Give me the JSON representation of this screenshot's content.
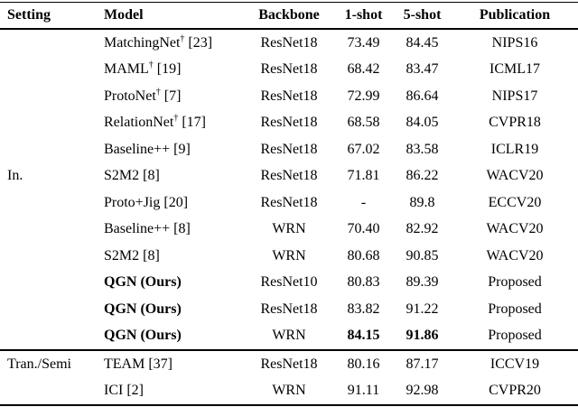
{
  "table": {
    "columns": [
      "Setting",
      "Model",
      "Backbone",
      "1-shot",
      "5-shot",
      "Publication"
    ],
    "separator_after_row_index": 11,
    "rows": [
      {
        "setting": "",
        "name": "MatchingNet",
        "sup": "†",
        "ref": "[23]",
        "backbone": "ResNet18",
        "one_shot": "73.49",
        "five_shot": "84.45",
        "pub": "NIPS16",
        "bold_model": false,
        "bold_scores": false
      },
      {
        "setting": "",
        "name": "MAML",
        "sup": "†",
        "ref": "[19]",
        "backbone": "ResNet18",
        "one_shot": "68.42",
        "five_shot": "83.47",
        "pub": "ICML17",
        "bold_model": false,
        "bold_scores": false
      },
      {
        "setting": "",
        "name": "ProtoNet",
        "sup": "†",
        "ref": "[7]",
        "backbone": "ResNet18",
        "one_shot": "72.99",
        "five_shot": "86.64",
        "pub": "NIPS17",
        "bold_model": false,
        "bold_scores": false
      },
      {
        "setting": "",
        "name": "RelationNet",
        "sup": "†",
        "ref": "[17]",
        "backbone": "ResNet18",
        "one_shot": "68.58",
        "five_shot": "84.05",
        "pub": "CVPR18",
        "bold_model": false,
        "bold_scores": false
      },
      {
        "setting": "",
        "name": "Baseline++",
        "sup": "",
        "ref": "[9]",
        "backbone": "ResNet18",
        "one_shot": "67.02",
        "five_shot": "83.58",
        "pub": "ICLR19",
        "bold_model": false,
        "bold_scores": false
      },
      {
        "setting": "In.",
        "name": "S2M2",
        "sup": "",
        "ref": "[8]",
        "backbone": "ResNet18",
        "one_shot": "71.81",
        "five_shot": "86.22",
        "pub": "WACV20",
        "bold_model": false,
        "bold_scores": false
      },
      {
        "setting": "",
        "name": "Proto+Jig",
        "sup": "",
        "ref": "[20]",
        "backbone": "ResNet18",
        "one_shot": "-",
        "five_shot": "89.8",
        "pub": "ECCV20",
        "bold_model": false,
        "bold_scores": false
      },
      {
        "setting": "",
        "name": "Baseline++",
        "sup": "",
        "ref": "[8]",
        "backbone": "WRN",
        "one_shot": "70.40",
        "five_shot": "82.92",
        "pub": "WACV20",
        "bold_model": false,
        "bold_scores": false
      },
      {
        "setting": "",
        "name": "S2M2",
        "sup": "",
        "ref": "[8]",
        "backbone": "WRN",
        "one_shot": "80.68",
        "five_shot": "90.85",
        "pub": "WACV20",
        "bold_model": false,
        "bold_scores": false
      },
      {
        "setting": "",
        "name": "QGN (Ours)",
        "sup": "",
        "ref": "",
        "backbone": "ResNet10",
        "one_shot": "80.83",
        "five_shot": "89.39",
        "pub": "Proposed",
        "bold_model": true,
        "bold_scores": false
      },
      {
        "setting": "",
        "name": "QGN (Ours)",
        "sup": "",
        "ref": "",
        "backbone": "ResNet18",
        "one_shot": "83.82",
        "five_shot": "91.22",
        "pub": "Proposed",
        "bold_model": true,
        "bold_scores": false
      },
      {
        "setting": "",
        "name": "QGN (Ours)",
        "sup": "",
        "ref": "",
        "backbone": "WRN",
        "one_shot": "84.15",
        "five_shot": "91.86",
        "pub": "Proposed",
        "bold_model": true,
        "bold_scores": true
      },
      {
        "setting": "Tran./Semi",
        "name": "TEAM",
        "sup": "",
        "ref": "[37]",
        "backbone": "ResNet18",
        "one_shot": "80.16",
        "five_shot": "87.17",
        "pub": "ICCV19",
        "bold_model": false,
        "bold_scores": false
      },
      {
        "setting": "",
        "name": "ICI",
        "sup": "",
        "ref": "[2]",
        "backbone": "WRN",
        "one_shot": "91.11",
        "five_shot": "92.98",
        "pub": "CVPR20",
        "bold_model": false,
        "bold_scores": false
      }
    ]
  }
}
